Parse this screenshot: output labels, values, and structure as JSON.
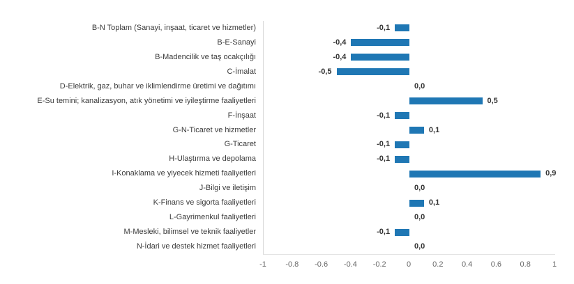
{
  "chart_data": {
    "type": "bar",
    "orientation": "horizontal",
    "title": "",
    "categories": [
      "B-N Toplam (Sanayi, inşaat, ticaret ve hizmetler)",
      "B-E-Sanayi",
      "B-Madencilik ve taş ocakçılığı",
      "C-İmalat",
      "D-Elektrik, gaz, buhar ve iklimlendirme üretimi ve dağıtımı",
      "E-Su temini; kanalizasyon, atık yönetimi ve iyileştirme faaliyetleri",
      "F-İnşaat",
      "G-N-Ticaret ve hizmetler",
      "G-Ticaret",
      "H-Ulaştırma ve depolama",
      "I-Konaklama ve yiyecek hizmeti faaliyetleri",
      "J-Bilgi ve iletişim",
      "K-Finans ve sigorta faaliyetleri",
      "L-Gayrimenkul faaliyetleri",
      "M-Mesleki, bilimsel ve teknik faaliyetler",
      "N-İdari ve destek hizmet faaliyetleri"
    ],
    "values": [
      -0.1,
      -0.4,
      -0.4,
      -0.5,
      0.0,
      0.5,
      -0.1,
      0.1,
      -0.1,
      -0.1,
      0.9,
      0.0,
      0.1,
      0.0,
      -0.1,
      0.0
    ],
    "value_labels": [
      "-0,1",
      "-0,4",
      "-0,4",
      "-0,5",
      "0,0",
      "0,5",
      "-0,1",
      "0,1",
      "-0,1",
      "-0,1",
      "0,9",
      "0,0",
      "0,1",
      "0,0",
      "-0,1",
      "0,0"
    ],
    "xlim": [
      -1,
      1
    ],
    "x_ticks": [
      -1,
      -0.8,
      -0.6,
      -0.4,
      -0.2,
      0,
      0.2,
      0.4,
      0.6,
      0.8,
      1
    ],
    "x_tick_labels": [
      "-1",
      "-0.8",
      "-0.6",
      "-0.4",
      "-0.2",
      "0",
      "0.2",
      "0.4",
      "0.6",
      "0.8",
      "1"
    ],
    "xlabel": "",
    "ylabel": "",
    "grid": false,
    "legend": false,
    "colors": {
      "bar": "#1f77b4",
      "category_label": "#3b3b3b",
      "value_label": "#333333",
      "tick_label": "#666666",
      "axis_line": "#d9d9d9"
    }
  }
}
